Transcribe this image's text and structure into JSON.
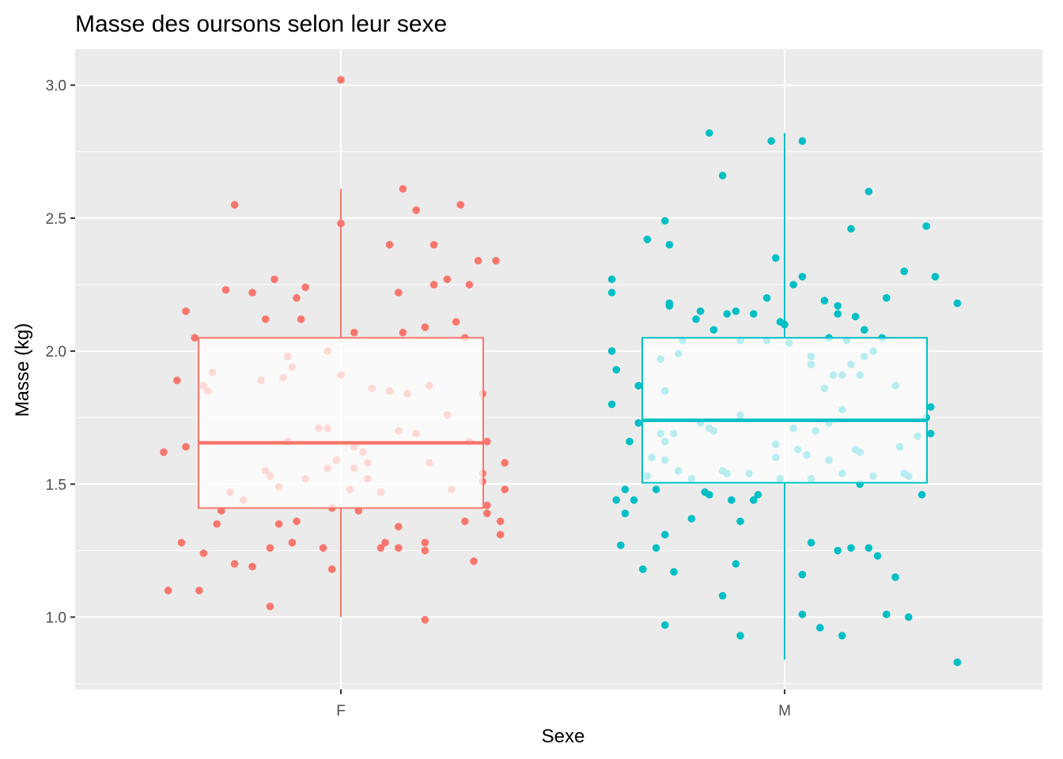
{
  "chart_data": {
    "type": "boxplot",
    "title": "Masse des oursons selon leur sexe",
    "xlabel": "Sexe",
    "ylabel": "Masse (kg)",
    "categories": [
      "F",
      "M"
    ],
    "ylim": [
      0.8,
      3.15
    ],
    "yticks": [
      "1.0",
      "1.5",
      "2.0",
      "2.5",
      "3.0"
    ],
    "grid": true,
    "legend": "none",
    "series": [
      {
        "name": "F",
        "color": "#F8766D",
        "box": {
          "min": 1.0,
          "q1": 1.41,
          "median": 1.655,
          "q3": 2.05,
          "max": 2.61
        },
        "points": [
          [
            -0.4,
            1.62
          ],
          [
            -0.39,
            1.1
          ],
          [
            -0.37,
            1.89
          ],
          [
            -0.36,
            1.28
          ],
          [
            -0.35,
            1.64
          ],
          [
            -0.35,
            2.15
          ],
          [
            -0.33,
            2.05
          ],
          [
            -0.32,
            1.1
          ],
          [
            -0.31,
            1.87
          ],
          [
            -0.31,
            1.24
          ],
          [
            -0.3,
            1.85
          ],
          [
            -0.29,
            1.92
          ],
          [
            -0.28,
            1.35
          ],
          [
            -0.27,
            1.4
          ],
          [
            -0.26,
            2.23
          ],
          [
            -0.25,
            1.47
          ],
          [
            -0.24,
            1.2
          ],
          [
            -0.24,
            2.55
          ],
          [
            -0.22,
            1.44
          ],
          [
            -0.2,
            1.19
          ],
          [
            -0.2,
            2.22
          ],
          [
            -0.18,
            1.89
          ],
          [
            -0.17,
            1.55
          ],
          [
            -0.17,
            2.12
          ],
          [
            -0.16,
            1.26
          ],
          [
            -0.16,
            1.53
          ],
          [
            -0.15,
            2.27
          ],
          [
            -0.16,
            1.04
          ],
          [
            -0.14,
            1.35
          ],
          [
            -0.14,
            1.49
          ],
          [
            -0.13,
            1.9
          ],
          [
            -0.12,
            1.66
          ],
          [
            -0.12,
            1.98
          ],
          [
            -0.11,
            1.94
          ],
          [
            -0.11,
            1.28
          ],
          [
            -0.1,
            2.2
          ],
          [
            -0.1,
            1.36
          ],
          [
            -0.09,
            2.12
          ],
          [
            -0.08,
            2.24
          ],
          [
            -0.05,
            1.71
          ],
          [
            -0.04,
            1.26
          ],
          [
            -0.03,
            2.0
          ],
          [
            -0.03,
            1.71
          ],
          [
            -0.03,
            1.56
          ],
          [
            -0.02,
            1.18
          ],
          [
            -0.02,
            1.41
          ],
          [
            -0.01,
            1.59
          ],
          [
            0.0,
            2.48
          ],
          [
            0.0,
            3.02
          ],
          [
            0.0,
            1.91
          ],
          [
            0.02,
            1.48
          ],
          [
            0.03,
            2.07
          ],
          [
            0.03,
            1.64
          ],
          [
            0.03,
            1.56
          ],
          [
            0.05,
            1.62
          ],
          [
            0.06,
            1.58
          ],
          [
            0.06,
            1.52
          ],
          [
            0.07,
            1.86
          ],
          [
            0.09,
            1.47
          ],
          [
            0.09,
            1.26
          ],
          [
            0.1,
            1.28
          ],
          [
            0.11,
            1.85
          ],
          [
            0.11,
            2.4
          ],
          [
            0.13,
            1.7
          ],
          [
            0.13,
            1.34
          ],
          [
            0.13,
            1.26
          ],
          [
            0.13,
            2.22
          ],
          [
            0.14,
            2.07
          ],
          [
            0.14,
            2.61
          ],
          [
            0.15,
            1.84
          ],
          [
            0.17,
            1.69
          ],
          [
            0.17,
            2.53
          ],
          [
            0.19,
            1.28
          ],
          [
            0.19,
            2.09
          ],
          [
            0.19,
            1.25
          ],
          [
            0.19,
            0.99
          ],
          [
            0.2,
            1.58
          ],
          [
            0.2,
            1.87
          ],
          [
            0.21,
            2.4
          ],
          [
            0.21,
            2.25
          ],
          [
            0.24,
            2.27
          ],
          [
            0.24,
            1.76
          ],
          [
            0.25,
            1.48
          ],
          [
            0.26,
            2.11
          ],
          [
            0.27,
            2.55
          ],
          [
            0.28,
            1.36
          ],
          [
            0.28,
            2.05
          ],
          [
            0.29,
            2.25
          ],
          [
            0.29,
            1.66
          ],
          [
            0.3,
            1.21
          ],
          [
            0.32,
            1.54
          ],
          [
            0.32,
            1.84
          ],
          [
            0.33,
            1.66
          ],
          [
            0.31,
            2.34
          ],
          [
            0.32,
            1.51
          ],
          [
            0.33,
            1.42
          ],
          [
            0.33,
            1.39
          ],
          [
            0.36,
            1.31
          ],
          [
            0.36,
            1.36
          ],
          [
            0.35,
            2.34
          ],
          [
            0.37,
            1.48
          ],
          [
            0.37,
            1.58
          ],
          [
            0.04,
            1.4
          ],
          [
            -0.08,
            1.52
          ]
        ]
      },
      {
        "name": "M",
        "color": "#00BFC4",
        "box": {
          "min": 0.84,
          "q1": 1.505,
          "median": 1.74,
          "q3": 2.05,
          "max": 2.82
        },
        "points": [
          [
            -0.39,
            2.27
          ],
          [
            -0.39,
            2.22
          ],
          [
            -0.39,
            2.0
          ],
          [
            -0.39,
            1.8
          ],
          [
            -0.38,
            1.93
          ],
          [
            -0.38,
            1.44
          ],
          [
            -0.37,
            1.27
          ],
          [
            -0.36,
            1.48
          ],
          [
            -0.36,
            1.39
          ],
          [
            -0.35,
            1.66
          ],
          [
            -0.34,
            1.44
          ],
          [
            -0.33,
            1.73
          ],
          [
            -0.33,
            1.87
          ],
          [
            -0.32,
            1.18
          ],
          [
            -0.31,
            1.53
          ],
          [
            -0.31,
            2.42
          ],
          [
            -0.3,
            1.6
          ],
          [
            -0.29,
            1.48
          ],
          [
            -0.29,
            1.26
          ],
          [
            -0.28,
            1.97
          ],
          [
            -0.28,
            1.69
          ],
          [
            -0.27,
            2.49
          ],
          [
            -0.27,
            1.31
          ],
          [
            -0.27,
            1.66
          ],
          [
            -0.27,
            1.59
          ],
          [
            -0.27,
            0.97
          ],
          [
            -0.27,
            1.85
          ],
          [
            -0.26,
            2.18
          ],
          [
            -0.26,
            2.4
          ],
          [
            -0.26,
            2.17
          ],
          [
            -0.25,
            1.17
          ],
          [
            -0.25,
            1.69
          ],
          [
            -0.24,
            1.99
          ],
          [
            -0.24,
            1.55
          ],
          [
            -0.23,
            2.04
          ],
          [
            -0.21,
            1.37
          ],
          [
            -0.21,
            1.52
          ],
          [
            -0.2,
            2.12
          ],
          [
            -0.19,
            2.15
          ],
          [
            -0.19,
            1.73
          ],
          [
            -0.18,
            1.47
          ],
          [
            -0.17,
            1.71
          ],
          [
            -0.17,
            1.46
          ],
          [
            -0.17,
            2.82
          ],
          [
            -0.16,
            1.7
          ],
          [
            -0.16,
            2.08
          ],
          [
            -0.14,
            1.55
          ],
          [
            -0.14,
            2.66
          ],
          [
            -0.14,
            1.08
          ],
          [
            -0.13,
            1.54
          ],
          [
            -0.13,
            2.14
          ],
          [
            -0.12,
            1.44
          ],
          [
            -0.11,
            2.15
          ],
          [
            -0.11,
            1.2
          ],
          [
            -0.1,
            0.93
          ],
          [
            -0.1,
            1.36
          ],
          [
            -0.1,
            1.76
          ],
          [
            -0.1,
            2.04
          ],
          [
            -0.08,
            1.54
          ],
          [
            -0.07,
            1.44
          ],
          [
            -0.07,
            2.14
          ],
          [
            -0.06,
            1.46
          ],
          [
            -0.04,
            2.2
          ],
          [
            -0.04,
            2.04
          ],
          [
            -0.03,
            2.79
          ],
          [
            -0.02,
            2.35
          ],
          [
            -0.02,
            1.6
          ],
          [
            -0.02,
            1.65
          ],
          [
            -0.01,
            2.11
          ],
          [
            -0.01,
            1.52
          ],
          [
            0.0,
            2.1
          ],
          [
            0.01,
            2.03
          ],
          [
            0.02,
            2.25
          ],
          [
            0.02,
            1.71
          ],
          [
            0.03,
            1.63
          ],
          [
            0.04,
            2.28
          ],
          [
            0.04,
            2.79
          ],
          [
            0.04,
            1.16
          ],
          [
            0.04,
            1.01
          ],
          [
            0.05,
            1.61
          ],
          [
            0.06,
            1.98
          ],
          [
            0.06,
            1.52
          ],
          [
            0.06,
            1.95
          ],
          [
            0.06,
            1.28
          ],
          [
            0.07,
            1.7
          ],
          [
            0.08,
            0.96
          ],
          [
            0.09,
            1.86
          ],
          [
            0.09,
            2.19
          ],
          [
            0.1,
            2.05
          ],
          [
            0.1,
            1.73
          ],
          [
            0.1,
            1.59
          ],
          [
            0.11,
            1.91
          ],
          [
            0.12,
            2.17
          ],
          [
            0.12,
            2.14
          ],
          [
            0.12,
            1.25
          ],
          [
            0.13,
            1.54
          ],
          [
            0.13,
            1.78
          ],
          [
            0.13,
            1.91
          ],
          [
            0.13,
            0.93
          ],
          [
            0.14,
            2.04
          ],
          [
            0.15,
            1.26
          ],
          [
            0.15,
            2.46
          ],
          [
            0.15,
            1.95
          ],
          [
            0.16,
            2.13
          ],
          [
            0.16,
            1.63
          ],
          [
            0.17,
            1.62
          ],
          [
            0.17,
            1.5
          ],
          [
            0.17,
            1.91
          ],
          [
            0.18,
            2.08
          ],
          [
            0.18,
            1.98
          ],
          [
            0.19,
            1.26
          ],
          [
            0.19,
            2.6
          ],
          [
            0.2,
            2.0
          ],
          [
            0.2,
            1.53
          ],
          [
            0.21,
            1.23
          ],
          [
            0.22,
            2.05
          ],
          [
            0.23,
            2.2
          ],
          [
            0.23,
            1.01
          ],
          [
            0.25,
            1.15
          ],
          [
            0.25,
            1.87
          ],
          [
            0.26,
            1.64
          ],
          [
            0.27,
            1.54
          ],
          [
            0.27,
            2.3
          ],
          [
            0.28,
            1.0
          ],
          [
            0.28,
            1.53
          ],
          [
            0.3,
            1.68
          ],
          [
            0.31,
            1.46
          ],
          [
            0.32,
            2.47
          ],
          [
            0.32,
            1.75
          ],
          [
            0.33,
            1.69
          ],
          [
            0.33,
            1.79
          ],
          [
            0.34,
            2.28
          ],
          [
            0.39,
            2.18
          ],
          [
            0.39,
            0.83
          ]
        ]
      }
    ]
  }
}
